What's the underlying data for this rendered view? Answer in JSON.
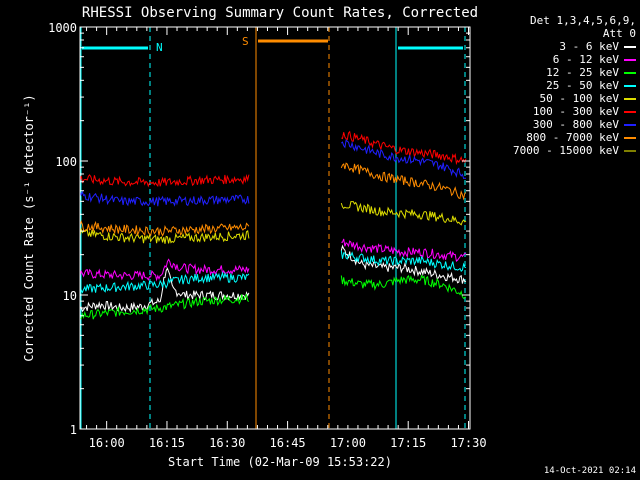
{
  "chart_data": {
    "type": "line",
    "title": "RHESSI Observing Summary Count Rates, Corrected",
    "xlabel": "Start Time (02-Mar-09 15:53:22)",
    "ylabel": "Corrected Count Rate (s⁻¹ detector⁻¹)",
    "yscale": "log",
    "ylim": [
      1,
      1000
    ],
    "xlim_minutes": [
      0,
      97
    ],
    "x_tick_labels": [
      "16:00",
      "16:15",
      "16:30",
      "16:45",
      "17:00",
      "17:15",
      "17:30"
    ],
    "x_tick_minutes": [
      6.63,
      21.63,
      36.63,
      51.63,
      66.63,
      81.63,
      96.63
    ],
    "y_tick_labels": [
      "1",
      "10",
      "100",
      "1000"
    ],
    "y_tick_values": [
      1,
      10,
      100,
      1000
    ],
    "legend_header": [
      "Det 1,3,4,5,6,9,",
      "Att 0"
    ],
    "series": [
      {
        "name": "3 - 6 keV",
        "color": "#ffffff",
        "segments": [
          {
            "t": [
              0,
              5,
              10,
              15,
              20,
              21.5,
              23,
              26,
              30,
              35,
              42
            ],
            "v": [
              8,
              8.5,
              8,
              8.2,
              9,
              16,
              11,
              10,
              10,
              10,
              10
            ]
          },
          {
            "t": [
              65,
              67,
              70,
              75,
              80,
              85,
              90,
              96
            ],
            "v": [
              22,
              20,
              17,
              16,
              16,
              15,
              14,
              13
            ]
          }
        ]
      },
      {
        "name": "6 - 12 keV",
        "color": "#ff00ff",
        "segments": [
          {
            "t": [
              0,
              10,
              20,
              22,
              25,
              30,
              42
            ],
            "v": [
              14.5,
              14,
              14,
              18,
              16,
              15.5,
              15.5
            ]
          },
          {
            "t": [
              65,
              70,
              75,
              80,
              85,
              90,
              96
            ],
            "v": [
              25,
              23,
              22,
              21,
              21,
              20,
              19
            ]
          }
        ]
      },
      {
        "name": "12 - 25 keV",
        "color": "#00ff00",
        "segments": [
          {
            "t": [
              0,
              10,
              20,
              25,
              30,
              42
            ],
            "v": [
              7,
              7.5,
              8,
              8.5,
              9,
              9.5
            ]
          },
          {
            "t": [
              65,
              70,
              75,
              80,
              85,
              90,
              96
            ],
            "v": [
              13,
              12,
              12,
              13,
              13,
              12,
              10
            ]
          }
        ]
      },
      {
        "name": "25 - 50 keV",
        "color": "#00ffff",
        "segments": [
          {
            "t": [
              0,
              10,
              20,
              25,
              30,
              42
            ],
            "v": [
              11,
              11.5,
              12,
              13,
              13.5,
              13.5
            ]
          },
          {
            "t": [
              65,
              70,
              75,
              80,
              85,
              90,
              96
            ],
            "v": [
              20,
              19,
              18,
              18,
              18,
              17,
              16
            ]
          }
        ]
      },
      {
        "name": "50 - 100 keV",
        "color": "#dddd00",
        "segments": [
          {
            "t": [
              0,
              10,
              20,
              30,
              42
            ],
            "v": [
              29,
              27,
              26,
              27,
              28
            ]
          },
          {
            "t": [
              65,
              70,
              75,
              80,
              85,
              90,
              96
            ],
            "v": [
              48,
              45,
              42,
              41,
              40,
              38,
              35
            ]
          }
        ]
      },
      {
        "name": "100 - 300 keV",
        "color": "#ff0000",
        "segments": [
          {
            "t": [
              0,
              10,
              20,
              30,
              42
            ],
            "v": [
              74,
              70,
              69,
              72,
              74
            ]
          },
          {
            "t": [
              65,
              70,
              75,
              80,
              85,
              90,
              96
            ],
            "v": [
              160,
              145,
              130,
              120,
              115,
              110,
              100
            ]
          }
        ]
      },
      {
        "name": "300 - 800 keV",
        "color": "#2020ff",
        "segments": [
          {
            "t": [
              0,
              10,
              20,
              30,
              42
            ],
            "v": [
              56,
              50,
              50,
              51,
              52
            ]
          },
          {
            "t": [
              65,
              70,
              75,
              80,
              85,
              90,
              96
            ],
            "v": [
              140,
              125,
              112,
              105,
              100,
              92,
              78
            ]
          }
        ]
      },
      {
        "name": "800 - 7000 keV",
        "color": "#ff8c00",
        "segments": [
          {
            "t": [
              0,
              10,
              20,
              30,
              42
            ],
            "v": [
              33,
              31,
              30,
              31,
              32
            ]
          },
          {
            "t": [
              65,
              70,
              75,
              80,
              85,
              90,
              96
            ],
            "v": [
              95,
              85,
              77,
              72,
              68,
              63,
              55
            ]
          }
        ]
      },
      {
        "name": "7000 - 15000 keV",
        "color": "#808000",
        "segments": []
      }
    ],
    "annotations": [
      {
        "text": "N",
        "color": "#00ffff"
      },
      {
        "text": "S",
        "color": "#ff8c00"
      }
    ],
    "timestamp": "14-Oct-2021 02:14"
  }
}
